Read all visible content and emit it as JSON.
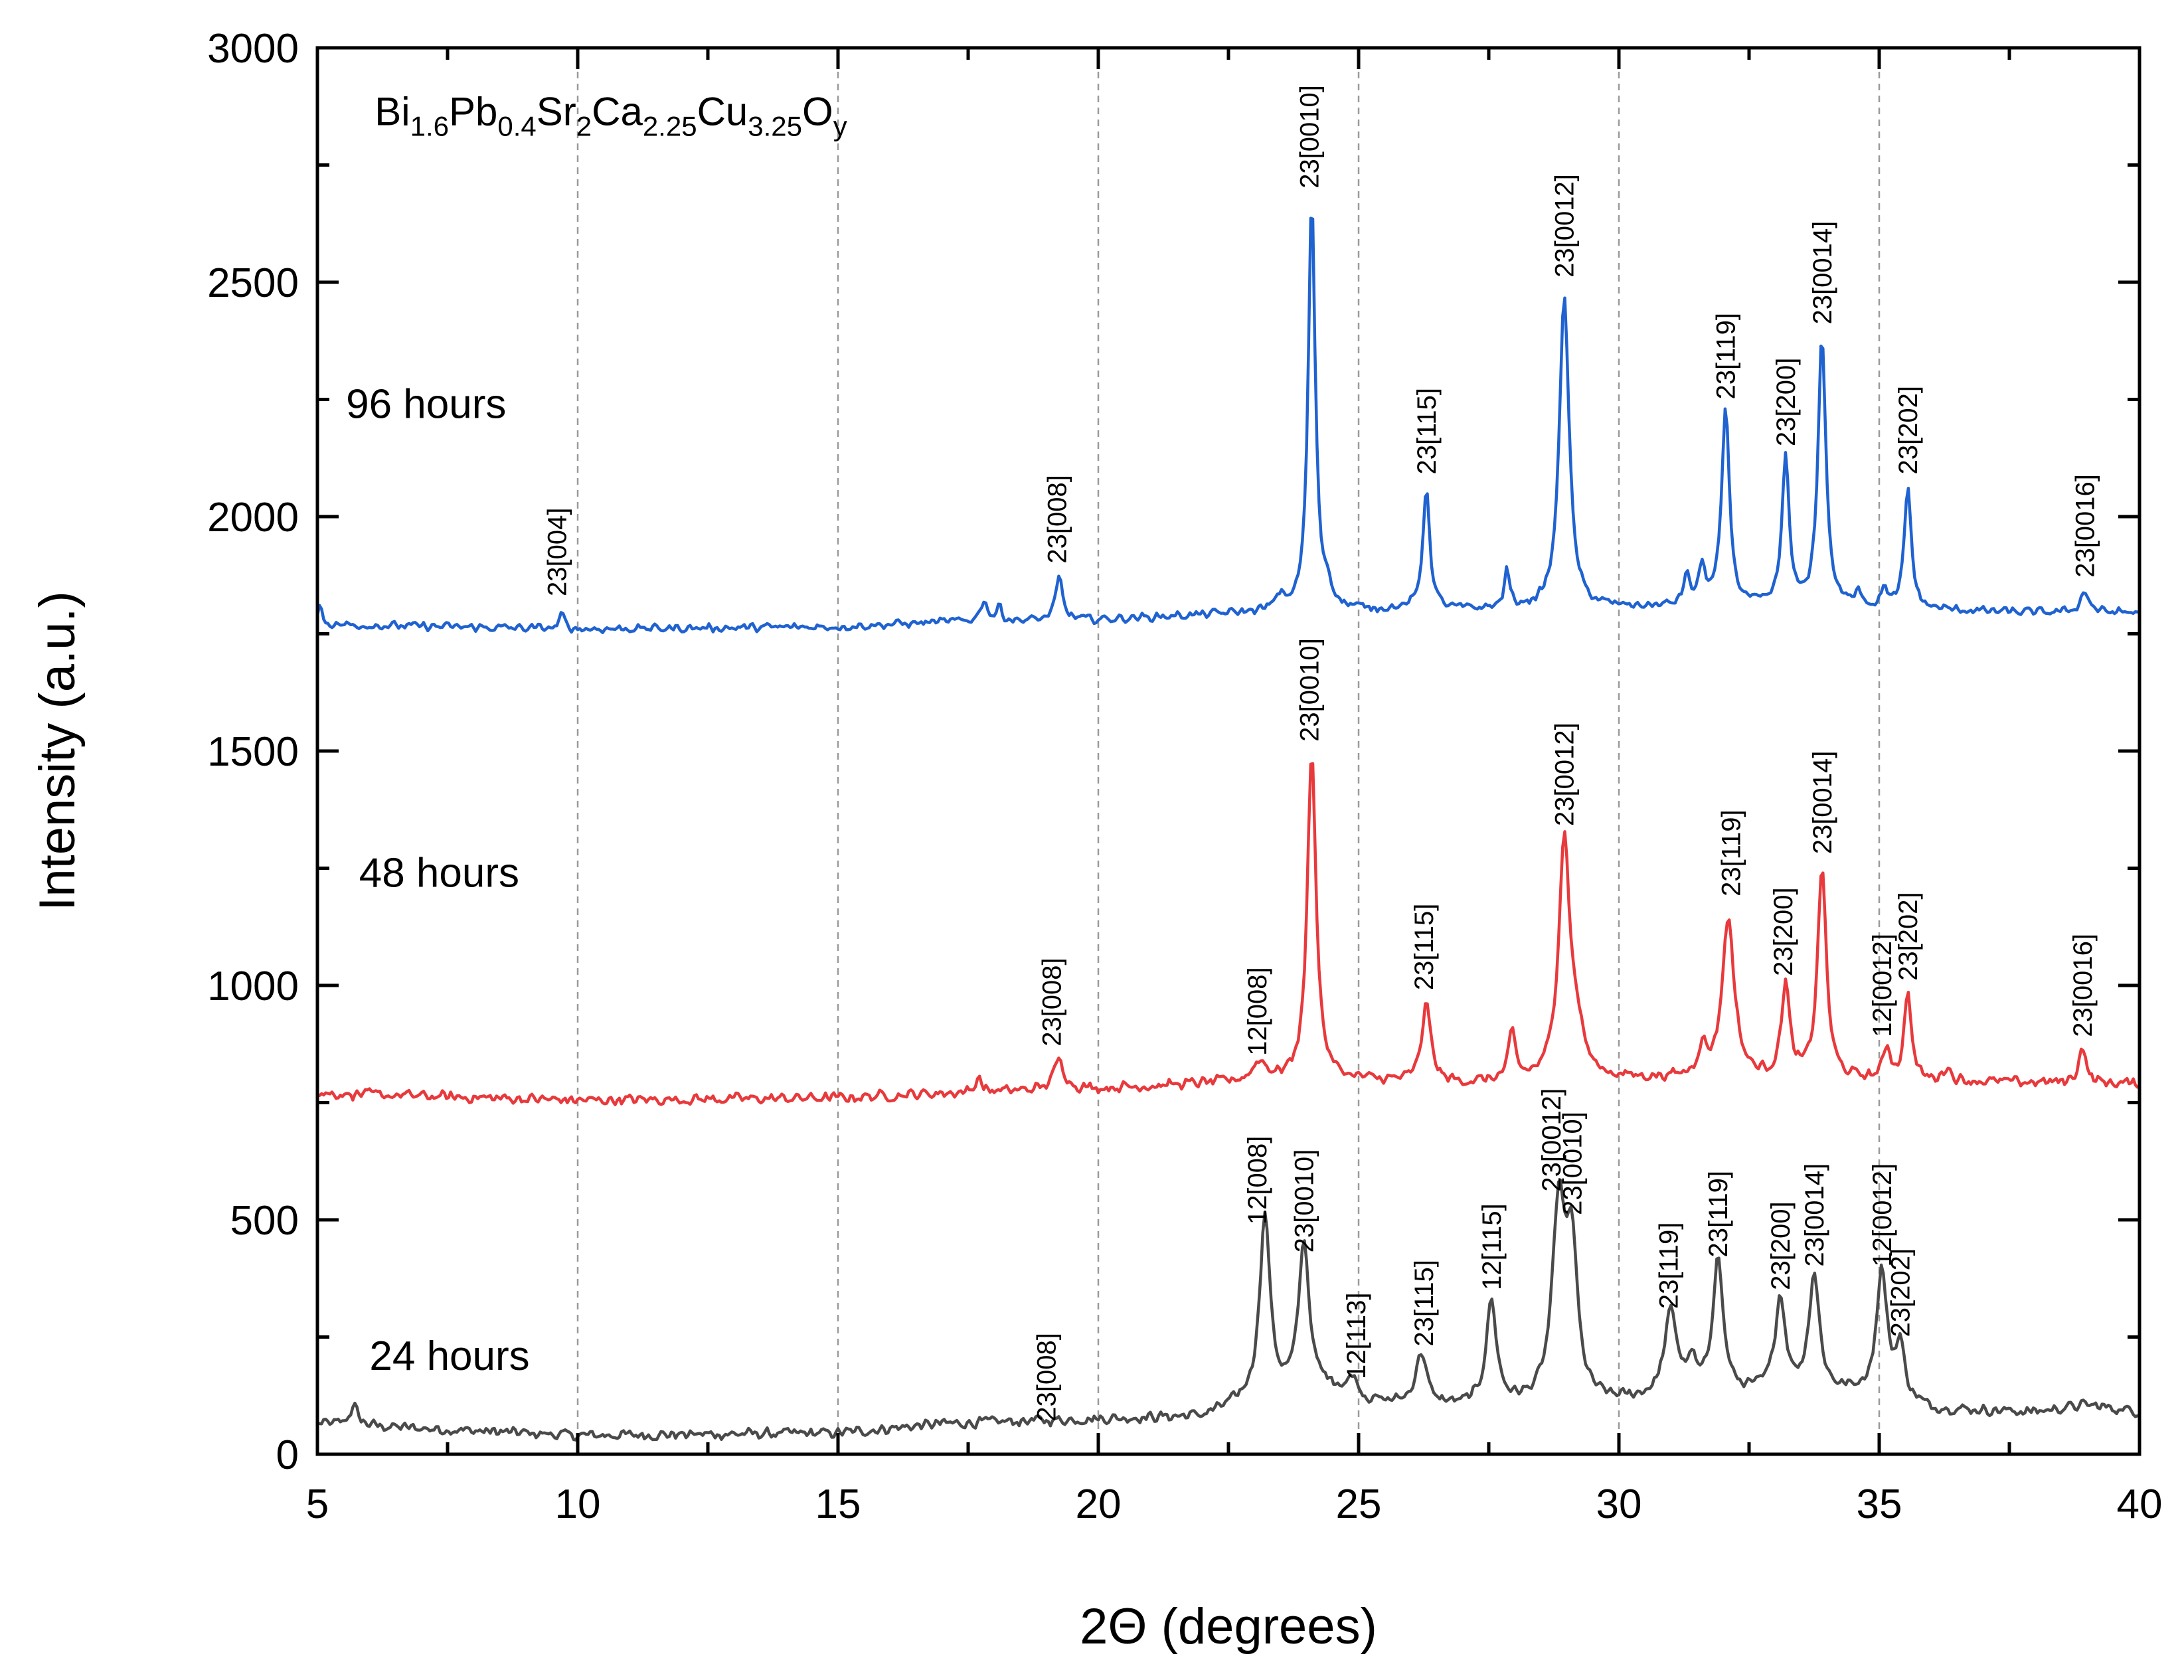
{
  "chart_data": {
    "type": "line",
    "title": "",
    "formula": {
      "parts": [
        {
          "text": "Bi",
          "sub": false
        },
        {
          "text": "1.6",
          "sub": true
        },
        {
          "text": "Pb",
          "sub": false
        },
        {
          "text": "0.4",
          "sub": true
        },
        {
          "text": "Sr",
          "sub": false
        },
        {
          "text": "2",
          "sub": true
        },
        {
          "text": "Ca",
          "sub": false
        },
        {
          "text": "2.25",
          "sub": true
        },
        {
          "text": "Cu",
          "sub": false
        },
        {
          "text": "3.25",
          "sub": true
        },
        {
          "text": "O",
          "sub": false
        },
        {
          "text": "y",
          "sub": true
        }
      ]
    },
    "xlabel": "2Θ (degrees)",
    "ylabel": "Intensity (a.u.)",
    "xlim": [
      5,
      40
    ],
    "ylim": [
      0,
      3000
    ],
    "xticks": [
      5,
      10,
      15,
      20,
      25,
      30,
      35,
      40
    ],
    "yticks": [
      0,
      500,
      1000,
      1500,
      2000,
      2500,
      3000
    ],
    "vgrid": [
      10,
      15,
      20,
      25,
      30,
      35
    ],
    "series": [
      {
        "name": "24 hours",
        "color": "#4a4a4a",
        "baseline": [
          [
            5,
            65
          ],
          [
            10,
            40
          ],
          [
            15,
            45
          ],
          [
            17,
            65
          ],
          [
            20,
            75
          ],
          [
            22,
            80
          ],
          [
            22.8,
            110
          ],
          [
            24.5,
            140
          ],
          [
            25.2,
            110
          ],
          [
            27,
            100
          ],
          [
            30,
            110
          ],
          [
            33,
            130
          ],
          [
            35,
            130
          ],
          [
            36,
            95
          ],
          [
            38,
            90
          ],
          [
            39,
            105
          ],
          [
            40,
            90
          ]
        ],
        "peaks": [
          [
            5.7,
            40,
            0.1
          ],
          [
            23.2,
            390,
            0.12
          ],
          [
            23.95,
            320,
            0.12
          ],
          [
            24.9,
            40,
            0.1
          ],
          [
            26.2,
            110,
            0.12
          ],
          [
            27.55,
            220,
            0.12
          ],
          [
            28.85,
            420,
            0.15
          ],
          [
            29.1,
            300,
            0.12
          ],
          [
            31.0,
            180,
            0.15
          ],
          [
            31.4,
            60,
            0.1
          ],
          [
            31.9,
            290,
            0.12
          ],
          [
            33.1,
            200,
            0.12
          ],
          [
            33.75,
            250,
            0.12
          ],
          [
            35.05,
            260,
            0.12
          ],
          [
            35.4,
            110,
            0.1
          ]
        ],
        "noise": 9,
        "labels": [
          {
            "text": "23[008]",
            "x": 19.0,
            "y": 70
          },
          {
            "text": "12[008]",
            "x": 23.05,
            "y": 490
          },
          {
            "text": "23[0010]",
            "x": 23.95,
            "y": 430
          },
          {
            "text": "12[113]",
            "x": 24.95,
            "y": 160
          },
          {
            "text": "23[115]",
            "x": 26.25,
            "y": 230
          },
          {
            "text": "12[115]",
            "x": 27.55,
            "y": 350
          },
          {
            "text": "23[0012]",
            "x": 28.7,
            "y": 560
          },
          {
            "text": "23[0010]",
            "x": 29.1,
            "y": 510
          },
          {
            "text": "23[119]",
            "x": 30.95,
            "y": 310
          },
          {
            "text": "23[119]",
            "x": 31.9,
            "y": 420
          },
          {
            "text": "23[200]",
            "x": 33.1,
            "y": 350
          },
          {
            "text": "23[0014]",
            "x": 33.75,
            "y": 400
          },
          {
            "text": "12[0012]",
            "x": 35.05,
            "y": 400
          },
          {
            "text": "23[202]",
            "x": 35.4,
            "y": 250
          }
        ]
      },
      {
        "name": "48 hours",
        "color": "#e8393c",
        "baseline": [
          [
            5,
            770
          ],
          [
            10,
            755
          ],
          [
            15,
            760
          ],
          [
            17,
            770
          ],
          [
            20,
            780
          ],
          [
            22,
            790
          ],
          [
            24,
            800
          ],
          [
            27,
            790
          ],
          [
            30,
            800
          ],
          [
            33,
            800
          ],
          [
            36,
            795
          ],
          [
            40,
            790
          ]
        ],
        "peaks": [
          [
            17.7,
            35,
            0.06
          ],
          [
            19.25,
            65,
            0.12
          ],
          [
            23.1,
            40,
            0.15
          ],
          [
            24.1,
            700,
            0.1
          ],
          [
            26.3,
            170,
            0.1
          ],
          [
            27.95,
            100,
            0.08
          ],
          [
            28.95,
            510,
            0.13
          ],
          [
            29.2,
            80,
            0.15
          ],
          [
            31.6,
            60,
            0.1
          ],
          [
            32.1,
            340,
            0.14
          ],
          [
            33.2,
            200,
            0.09
          ],
          [
            33.9,
            450,
            0.1
          ],
          [
            35.15,
            70,
            0.08
          ],
          [
            35.55,
            190,
            0.08
          ],
          [
            36.3,
            30,
            0.08
          ],
          [
            38.9,
            80,
            0.08
          ]
        ],
        "noise": 9,
        "labels": [
          {
            "text": "23[008]",
            "x": 19.1,
            "y": 870
          },
          {
            "text": "12[008]",
            "x": 23.05,
            "y": 850
          },
          {
            "text": "23[0010]",
            "x": 24.05,
            "y": 1520
          },
          {
            "text": "23[115]",
            "x": 26.25,
            "y": 990
          },
          {
            "text": "23[0012]",
            "x": 28.95,
            "y": 1340
          },
          {
            "text": "23[119]",
            "x": 32.15,
            "y": 1190
          },
          {
            "text": "23[200]",
            "x": 33.15,
            "y": 1020
          },
          {
            "text": "23[0014]",
            "x": 33.9,
            "y": 1280
          },
          {
            "text": "12[0012]",
            "x": 35.05,
            "y": 890
          },
          {
            "text": "23[202]",
            "x": 35.55,
            "y": 1010
          },
          {
            "text": "23[0016]",
            "x": 38.9,
            "y": 890
          }
        ]
      },
      {
        "name": "96 hours",
        "color": "#1f62d0",
        "baseline": [
          [
            5,
            1770
          ],
          [
            10,
            1760
          ],
          [
            15,
            1765
          ],
          [
            17,
            1775
          ],
          [
            20,
            1780
          ],
          [
            22,
            1790
          ],
          [
            23,
            1795
          ],
          [
            25,
            1800
          ],
          [
            27,
            1800
          ],
          [
            30,
            1805
          ],
          [
            33,
            1805
          ],
          [
            36,
            1800
          ],
          [
            38,
            1795
          ],
          [
            40,
            1795
          ]
        ],
        "peaks": [
          [
            5.05,
            40,
            0.05
          ],
          [
            9.7,
            30,
            0.06
          ],
          [
            17.8,
            45,
            0.08
          ],
          [
            18.1,
            30,
            0.06
          ],
          [
            19.25,
            90,
            0.08
          ],
          [
            23.5,
            30,
            0.1
          ],
          [
            24.1,
            880,
            0.08
          ],
          [
            24.4,
            40,
            0.1
          ],
          [
            26.3,
            260,
            0.08
          ],
          [
            27.85,
            80,
            0.06
          ],
          [
            28.95,
            675,
            0.11
          ],
          [
            31.3,
            60,
            0.08
          ],
          [
            31.6,
            80,
            0.08
          ],
          [
            32.05,
            420,
            0.09
          ],
          [
            33.2,
            320,
            0.08
          ],
          [
            33.9,
            580,
            0.09
          ],
          [
            34.6,
            40,
            0.07
          ],
          [
            35.1,
            45,
            0.06
          ],
          [
            35.55,
            260,
            0.08
          ],
          [
            38.95,
            45,
            0.1
          ]
        ],
        "noise": 7,
        "labels": [
          {
            "text": "23[004]",
            "x": 9.6,
            "y": 1830
          },
          {
            "text": "23[008]",
            "x": 19.2,
            "y": 1900
          },
          {
            "text": "23[0010]",
            "x": 24.05,
            "y": 2700
          },
          {
            "text": "23[115]",
            "x": 26.3,
            "y": 2090
          },
          {
            "text": "23[0012]",
            "x": 28.95,
            "y": 2510
          },
          {
            "text": "23[119]",
            "x": 32.05,
            "y": 2250
          },
          {
            "text": "23[200]",
            "x": 33.2,
            "y": 2150
          },
          {
            "text": "23[0014]",
            "x": 33.9,
            "y": 2410
          },
          {
            "text": "23[202]",
            "x": 35.55,
            "y": 2090
          },
          {
            "text": "23[0016]",
            "x": 38.95,
            "y": 1870
          }
        ]
      }
    ],
    "series_labels": [
      {
        "text": "24 hours",
        "x": 6.0,
        "y": 180
      },
      {
        "text": "48 hours",
        "x": 5.8,
        "y": 1210
      },
      {
        "text": "96 hours",
        "x": 5.55,
        "y": 2210
      }
    ]
  }
}
